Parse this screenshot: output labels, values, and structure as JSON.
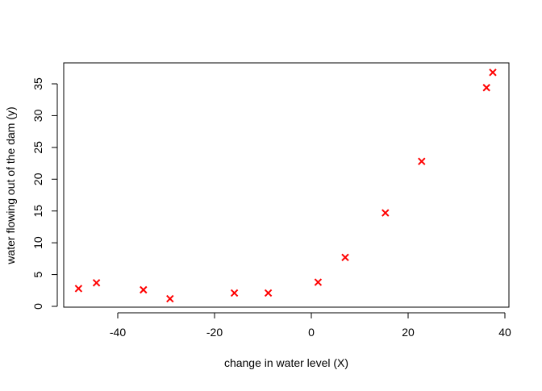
{
  "chart_data": {
    "type": "scatter",
    "title": "",
    "xlabel": "change in water level (X)",
    "ylabel": "water flowing out of the dam (y)",
    "xlim": [
      -50,
      40
    ],
    "ylim": [
      0,
      37
    ],
    "xticks": [
      -40,
      -20,
      0,
      20,
      40
    ],
    "yticks": [
      0,
      5,
      10,
      15,
      20,
      25,
      30,
      35
    ],
    "grid": false,
    "legend": "none",
    "marker": "x",
    "color": "#ff0000",
    "series": [
      {
        "x": [
          -48.1,
          -44.4,
          -34.7,
          -29.2,
          -15.9,
          -8.9,
          1.4,
          7.0,
          15.3,
          22.8,
          36.2,
          37.5
        ],
        "y": [
          2.8,
          3.7,
          2.6,
          1.2,
          2.1,
          2.1,
          3.8,
          7.7,
          14.7,
          22.8,
          34.4,
          36.8
        ]
      }
    ]
  }
}
